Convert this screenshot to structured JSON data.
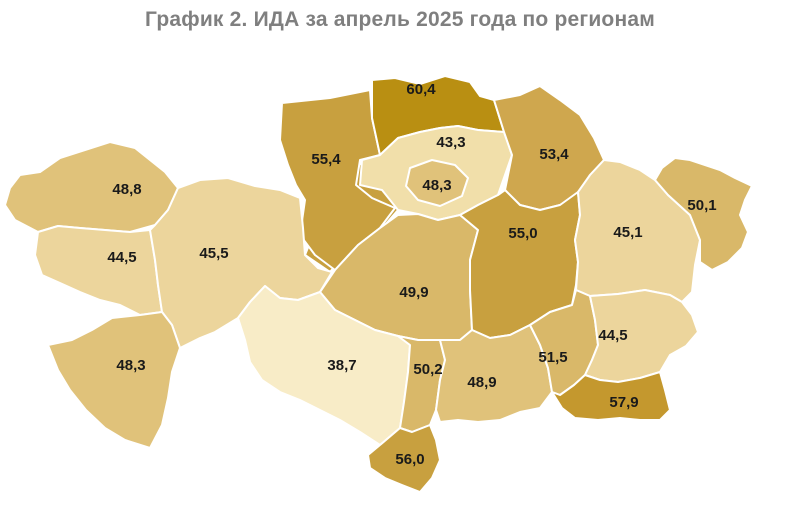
{
  "title": "График 2. ИДА за апрель 2025 года по регионам",
  "colors": {
    "c38": "#f8ecc7",
    "c43": "#f1dfaa",
    "c45": "#ecd59c",
    "c48": "#e0c27a",
    "c50": "#d9b869",
    "c53": "#cfa74e",
    "c55": "#c8a03f",
    "c57": "#c4982e",
    "c60": "#b98f12"
  },
  "regions": [
    {
      "id": "north-kazakhstan",
      "value": "60,4",
      "color": "c60"
    },
    {
      "id": "kostanay",
      "value": "55,4",
      "color": "c55"
    },
    {
      "id": "akmola",
      "value": "43,3",
      "color": "c43"
    },
    {
      "id": "astana",
      "value": "48,3",
      "color": "c48"
    },
    {
      "id": "pavlodar",
      "value": "53,4",
      "color": "c53"
    },
    {
      "id": "west-kazakhstan",
      "value": "48,8",
      "color": "c48"
    },
    {
      "id": "atyrau",
      "value": "44,5",
      "color": "c45"
    },
    {
      "id": "aktobe",
      "value": "45,5",
      "color": "c45"
    },
    {
      "id": "karaganda",
      "value": "55,0",
      "color": "c55"
    },
    {
      "id": "ulytau",
      "value": "49,9",
      "color": "c50"
    },
    {
      "id": "abai",
      "value": "45,1",
      "color": "c45"
    },
    {
      "id": "east-kazakhstan",
      "value": "50,1",
      "color": "c50"
    },
    {
      "id": "mangystau",
      "value": "48,3",
      "color": "c48"
    },
    {
      "id": "kyzylorda",
      "value": "38,7",
      "color": "c38"
    },
    {
      "id": "turkestan",
      "value": "50,2",
      "color": "c50"
    },
    {
      "id": "zhambyl",
      "value": "48,9",
      "color": "c48"
    },
    {
      "id": "almaty-region",
      "value": "51,5",
      "color": "c50"
    },
    {
      "id": "zhetysu",
      "value": "44,5",
      "color": "c45"
    },
    {
      "id": "almaty-city",
      "value": "57,9",
      "color": "c57"
    },
    {
      "id": "shymkent",
      "value": "56,0",
      "color": "c55"
    }
  ]
}
